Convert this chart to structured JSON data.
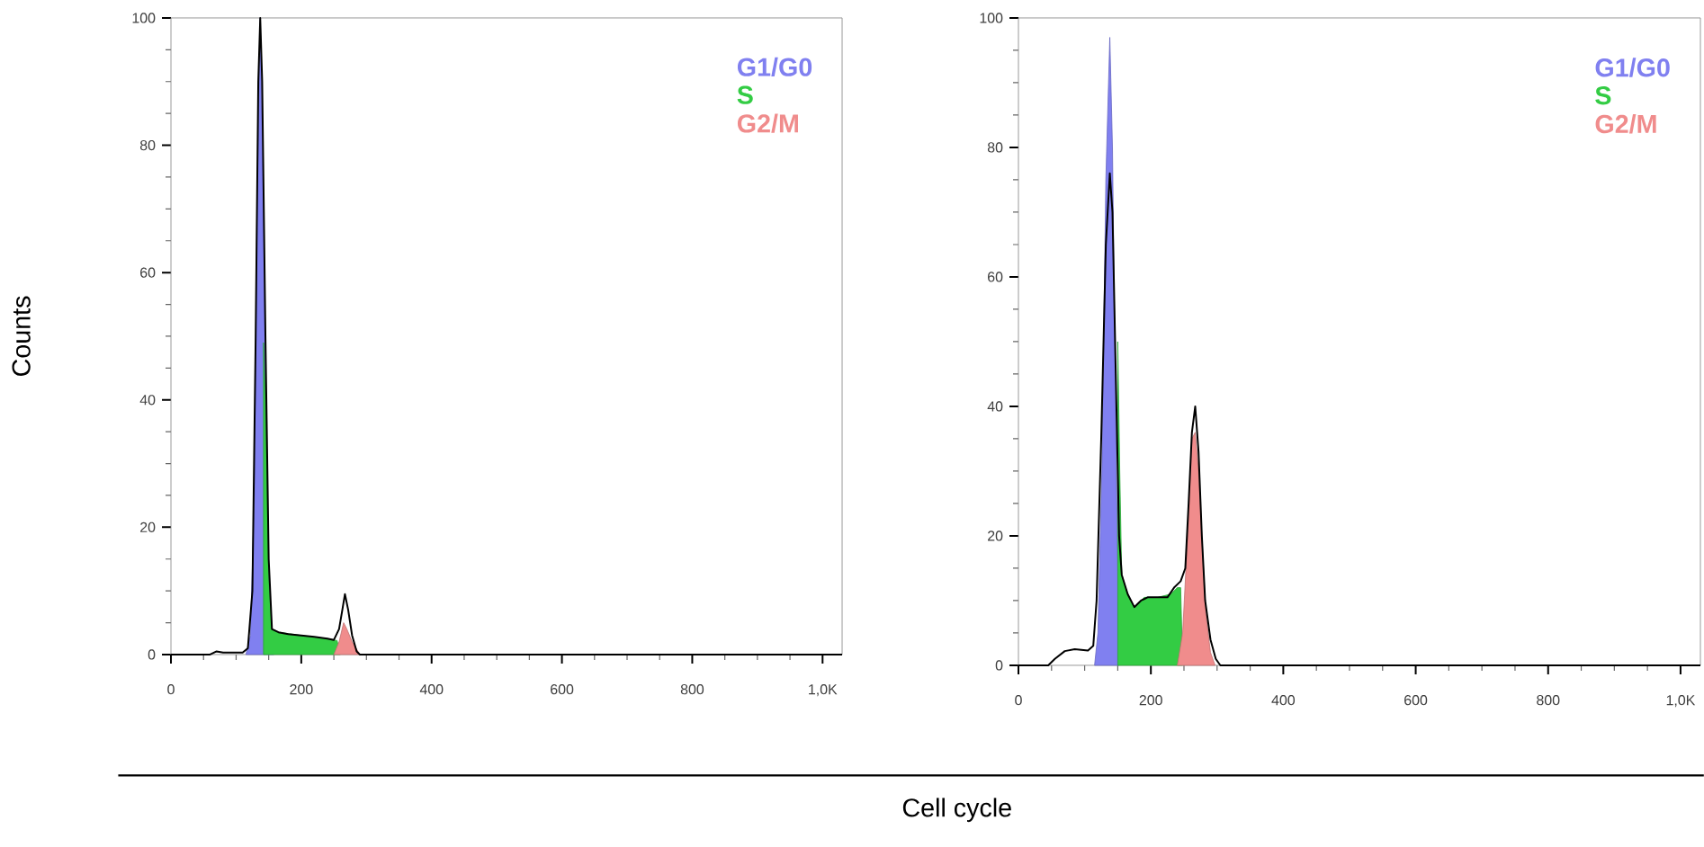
{
  "chart_data": [
    {
      "type": "area",
      "ylabel": "Counts",
      "xlim": [
        0,
        1030
      ],
      "ylim": [
        0,
        100
      ],
      "xticks": [
        0,
        200,
        400,
        600,
        800,
        {
          "value": 1000,
          "label": "1,0K"
        }
      ],
      "yticks": [
        0,
        20,
        40,
        60,
        80,
        100
      ],
      "legend": "top right",
      "series": [
        {
          "name": "G1/G0",
          "color": "#8080f0",
          "x": [
            115,
            122,
            128,
            132,
            137,
            142,
            147,
            152,
            158
          ],
          "values": [
            0,
            3,
            25,
            70,
            100,
            70,
            25,
            5,
            0
          ]
        },
        {
          "name": "S",
          "color": "#33cc44",
          "x": [
            142,
            142,
            145,
            150,
            155,
            165,
            200,
            240,
            255,
            260
          ],
          "values": [
            0,
            49,
            40,
            12,
            4,
            3.5,
            3,
            2.5,
            2.2,
            0
          ]
        },
        {
          "name": "G2/M",
          "color": "#f08c8c",
          "x": [
            250,
            258,
            265,
            270,
            278,
            290
          ],
          "values": [
            0,
            2,
            5,
            4,
            2,
            0
          ]
        },
        {
          "type": "line",
          "color": "#000000",
          "x": [
            0,
            60,
            70,
            80,
            110,
            118,
            125,
            130,
            134,
            137,
            140,
            145,
            150,
            155,
            165,
            180,
            200,
            220,
            240,
            250,
            258,
            263,
            267,
            272,
            278,
            285,
            290,
            1030
          ],
          "values": [
            0,
            0,
            0.5,
            0.3,
            0.3,
            1,
            10,
            50,
            90,
            100,
            90,
            50,
            15,
            4,
            3.5,
            3.2,
            3,
            2.8,
            2.5,
            2.3,
            4,
            7,
            9.5,
            7,
            3,
            0.5,
            0,
            0
          ]
        }
      ]
    },
    {
      "type": "area",
      "xlabel": "Cell cycle",
      "xlim": [
        0,
        1030
      ],
      "ylim": [
        0,
        100
      ],
      "xticks": [
        0,
        200,
        400,
        600,
        800,
        {
          "value": 1000,
          "label": "1,0K"
        }
      ],
      "yticks": [
        0,
        20,
        40,
        60,
        80,
        100
      ],
      "legend": "top right",
      "series": [
        {
          "name": "G1/G0",
          "color": "#8080f0",
          "x": [
            115,
            120,
            126,
            132,
            138,
            142,
            146,
            150,
            152
          ],
          "values": [
            0,
            5,
            30,
            75,
            97,
            80,
            45,
            15,
            0
          ]
        },
        {
          "name": "S",
          "color": "#33cc44",
          "x": [
            150,
            150,
            153,
            156,
            165,
            175,
            190,
            210,
            230,
            240,
            245,
            248
          ],
          "values": [
            0,
            50,
            30,
            14,
            11,
            9,
            10.5,
            10.5,
            11,
            12,
            12,
            0
          ]
        },
        {
          "name": "G2/M",
          "color": "#f08c8c",
          "x": [
            240,
            248,
            253,
            258,
            262,
            267,
            272,
            278,
            283,
            290,
            297
          ],
          "values": [
            0,
            5,
            15,
            25,
            35,
            36,
            30,
            18,
            8,
            2,
            0
          ]
        },
        {
          "type": "line",
          "color": "#000000",
          "x": [
            0,
            45,
            55,
            70,
            85,
            105,
            113,
            118,
            125,
            132,
            138,
            142,
            147,
            152,
            156,
            165,
            175,
            185,
            195,
            210,
            225,
            235,
            245,
            252,
            257,
            262,
            267,
            272,
            277,
            282,
            290,
            298,
            305,
            1030
          ],
          "values": [
            0,
            0,
            1,
            2.2,
            2.5,
            2.3,
            3,
            10,
            35,
            65,
            76,
            70,
            45,
            20,
            14,
            11,
            9,
            10,
            10.5,
            10.5,
            10.5,
            12,
            13,
            15,
            25,
            36,
            40,
            33,
            20,
            10,
            4,
            1,
            0,
            0
          ]
        }
      ]
    }
  ]
}
